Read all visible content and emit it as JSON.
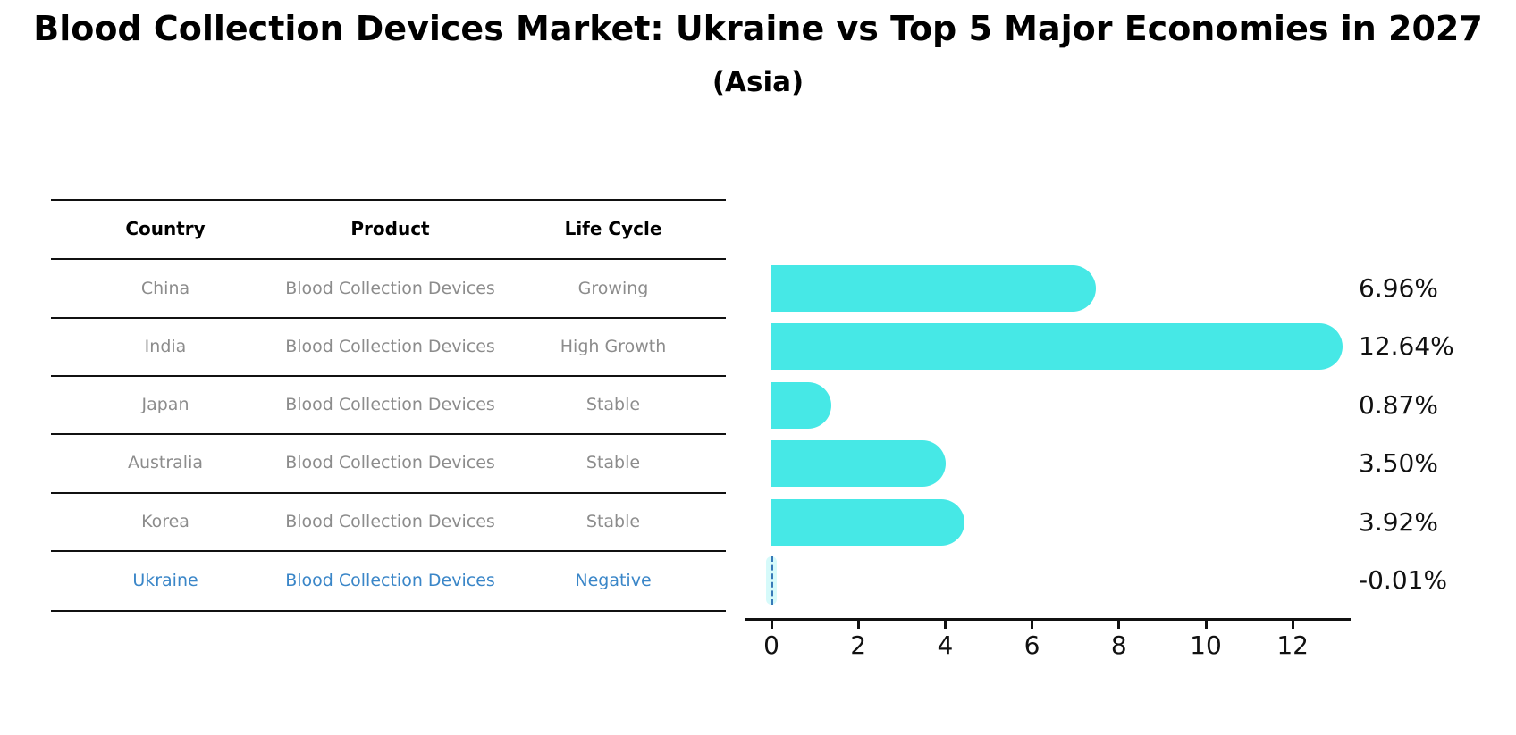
{
  "title": "Blood Collection Devices Market: Ukraine vs Top 5 Major Economies in 2027",
  "subtitle": "(Asia)",
  "table": {
    "headers": [
      "Country",
      "Product",
      "Life Cycle"
    ],
    "rows": [
      {
        "country": "China",
        "product": "Blood Collection Devices",
        "life_cycle": "Growing"
      },
      {
        "country": "India",
        "product": "Blood Collection Devices",
        "life_cycle": "High Growth"
      },
      {
        "country": "Japan",
        "product": "Blood Collection Devices",
        "life_cycle": "Stable"
      },
      {
        "country": "Australia",
        "product": "Blood Collection Devices",
        "life_cycle": "Stable"
      },
      {
        "country": "Korea",
        "product": "Blood Collection Devices",
        "life_cycle": "Stable"
      },
      {
        "country": "Ukraine",
        "product": "Blood Collection Devices",
        "life_cycle": "Negative"
      }
    ],
    "highlight_row": "Ukraine"
  },
  "chart_data": {
    "type": "bar",
    "orientation": "horizontal",
    "categories": [
      "China",
      "India",
      "Japan",
      "Australia",
      "Korea",
      "Ukraine"
    ],
    "values": [
      6.96,
      12.64,
      0.87,
      3.5,
      3.92,
      -0.01
    ],
    "value_labels": [
      "6.96%",
      "12.64%",
      "0.87%",
      "3.50%",
      "3.92%",
      "-0.01%"
    ],
    "xticks": [
      0,
      2,
      4,
      6,
      8,
      10,
      12
    ],
    "xlim": [
      0,
      13.3
    ],
    "grid": false,
    "legend": "none",
    "bar_color": "#46e8e6",
    "negative_marker_color": "#3779b8",
    "highlight_text_color": "#3a86c8",
    "row_text_color": "#8c8c8c",
    "axis_color": "#111111"
  }
}
